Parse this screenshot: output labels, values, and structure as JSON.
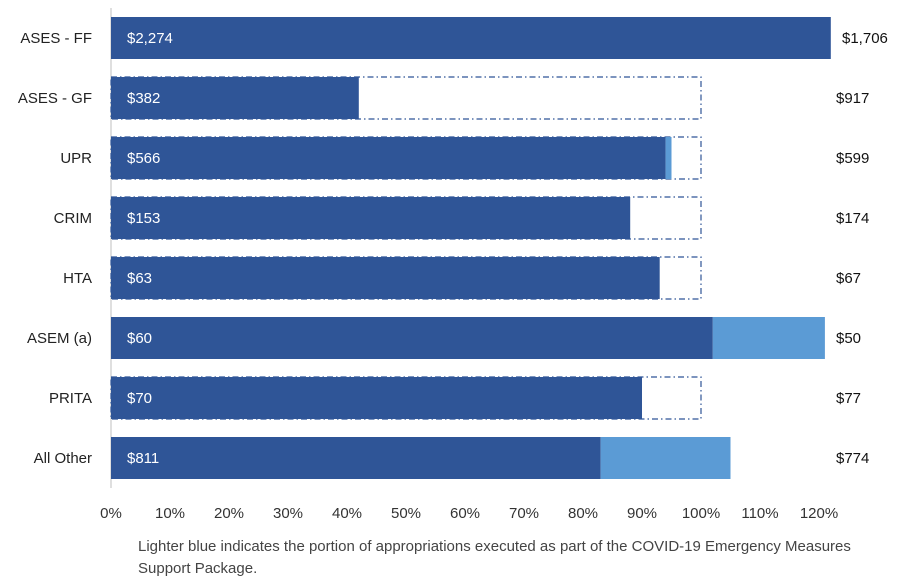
{
  "chart_data": {
    "type": "bar",
    "orientation": "horizontal",
    "stacked": true,
    "categories": [
      "ASES - FF",
      "ASES - GF",
      "UPR",
      "CRIM",
      "HTA",
      "ASEM (a)",
      "PRITA",
      "All Other"
    ],
    "series": [
      {
        "values": [
          122,
          42,
          94,
          88,
          93,
          102,
          90,
          83
        ],
        "color": "#2F5597"
      },
      {
        "values": [
          0,
          0,
          1,
          0,
          0,
          19,
          0,
          22
        ],
        "color": "#5B9BD5"
      }
    ],
    "budget_outline": [
      100,
      100,
      100,
      100,
      100,
      100,
      100,
      100
    ],
    "bar_labels": [
      "$2,274",
      "$382",
      "$566",
      "$153",
      "$63",
      "$60",
      "$70",
      "$811"
    ],
    "right_labels": [
      "$1,706",
      "$917",
      "$599",
      "$174",
      "$67",
      "$50",
      "$77",
      "$774"
    ],
    "x_ticks": [
      "0%",
      "10%",
      "20%",
      "30%",
      "40%",
      "50%",
      "60%",
      "70%",
      "80%",
      "90%",
      "100%",
      "110%",
      "120%"
    ],
    "xlim": [
      0,
      122
    ],
    "grid": false,
    "note": "Lighter blue indicates the portion of appropriations executed as part of the COVID-19 Emergency Measures Support Package."
  }
}
